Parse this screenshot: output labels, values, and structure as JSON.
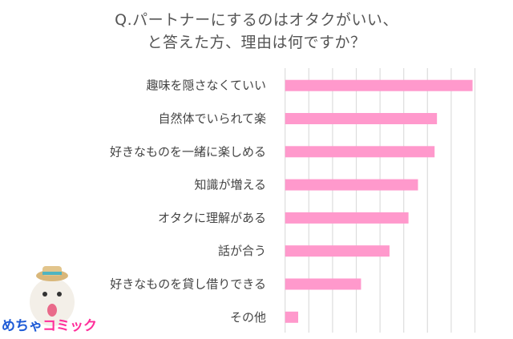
{
  "chart_data": {
    "type": "bar",
    "orientation": "horizontal",
    "title": "Q.パートナーにするのはオタクがいい、",
    "subtitle": "と答えた方、理由は何ですか？",
    "categories": [
      "趣味を隠さなくていい",
      "自然体でいられて楽",
      "好きなものを一緒に楽しめる",
      "知識が増える",
      "オタクに理解がある",
      "話が合う",
      "好きなものを貸し借りできる",
      "その他"
    ],
    "values": [
      7.9,
      6.4,
      6.3,
      5.6,
      5.2,
      4.4,
      3.2,
      0.55
    ],
    "xlim": [
      0,
      8
    ],
    "grid": true,
    "bar_color": "#ff99cc",
    "grid_color": "#dddddd"
  },
  "logo": {
    "part1": "めちゃ",
    "part2": "コミック"
  }
}
